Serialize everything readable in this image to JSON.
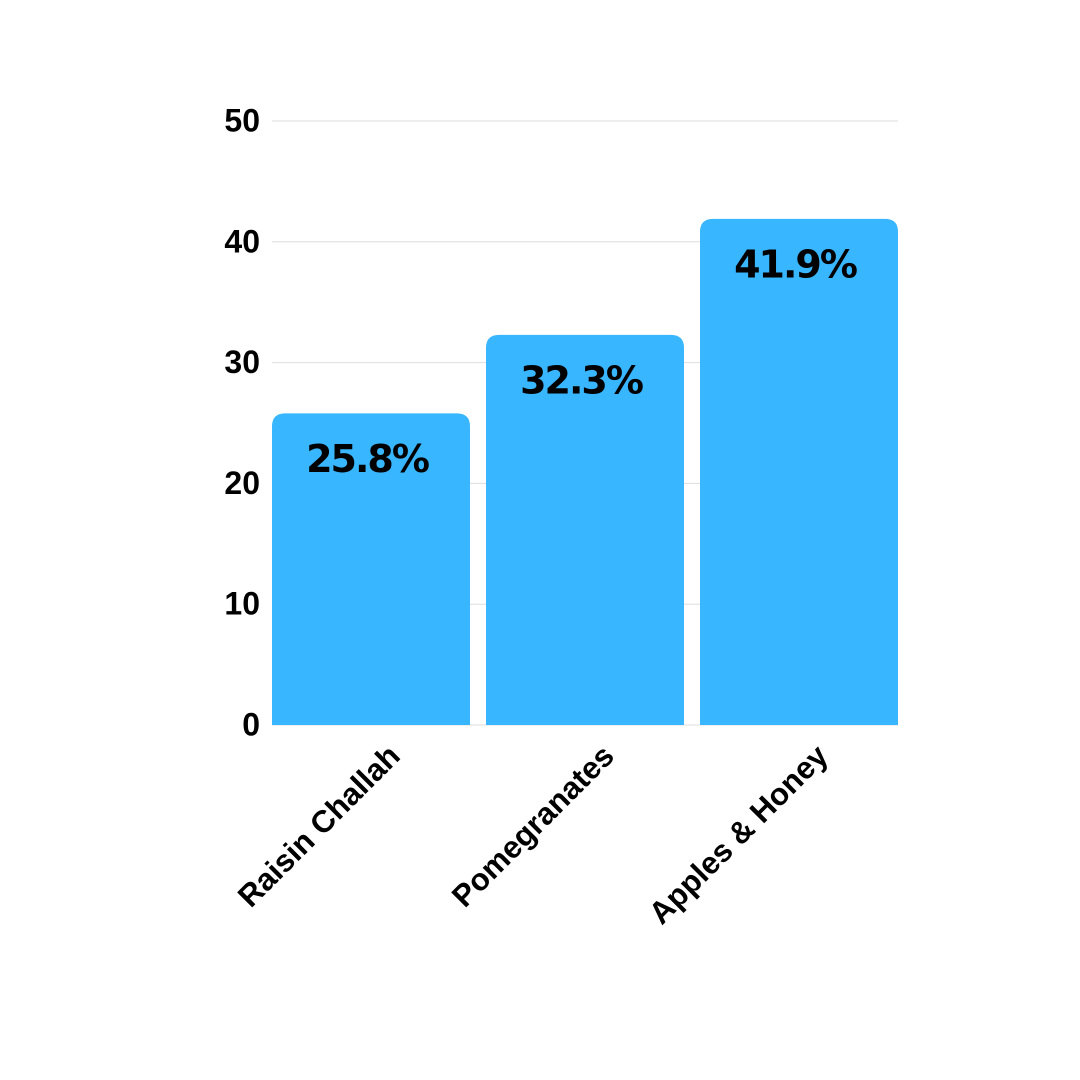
{
  "chart_data": {
    "type": "bar",
    "categories": [
      "Raisin Challah",
      "Pomegranates",
      "Apples & Honey"
    ],
    "values": [
      25.8,
      32.3,
      41.9
    ],
    "value_labels": [
      "25.8%",
      "32.3%",
      "41.9%"
    ],
    "color": "#38b6ff",
    "ylim": [
      0,
      50
    ],
    "yticks": [
      0,
      10,
      20,
      30,
      40,
      50
    ],
    "grid": true
  }
}
